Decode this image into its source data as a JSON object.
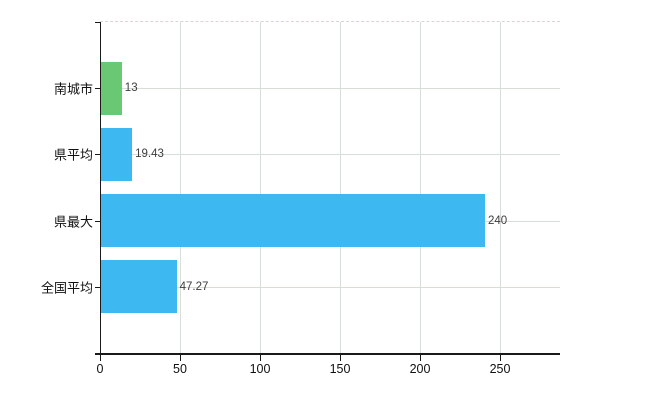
{
  "chart_data": {
    "type": "bar",
    "orientation": "horizontal",
    "categories": [
      "南城市",
      "県平均",
      "県最大",
      "全国平均"
    ],
    "values": [
      13,
      19.43,
      240,
      47.27
    ],
    "value_labels": [
      "13",
      "19.43",
      "240",
      "47.27"
    ],
    "bar_colors": [
      "#68c874",
      "#3eb8f0",
      "#3eb8f0",
      "#3eb8f0"
    ],
    "x_ticks": [
      0,
      50,
      100,
      150,
      200,
      250
    ],
    "x_tick_labels": [
      "0",
      "50",
      "100",
      "150",
      "200",
      "250"
    ],
    "xlim": [
      0,
      287.5
    ],
    "grid": true,
    "legend": false,
    "gridline_color": "#d7ddd7",
    "axis_color": "#1a1a1a",
    "value_label_color": "#3d3d3d",
    "background_color": "#ffffff"
  }
}
